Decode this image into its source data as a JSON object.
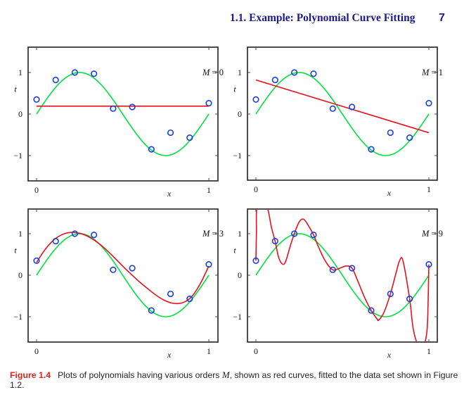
{
  "header": {
    "section_title": "1.1. Example: Polynomial Curve Fitting",
    "page_number": "7"
  },
  "caption": {
    "label": "Figure 1.4",
    "text_before": "Plots of polynomials having various orders ",
    "symbol": "M",
    "text_after": ", shown as red curves, fitted to the data set shown in Figure 1.2."
  },
  "colors": {
    "data_points": "#1a3ee0",
    "true_curve": "#00e040",
    "fit_curve": "#e8101e",
    "header_text": "#1a1a8c",
    "caption_label": "#e2231a"
  },
  "chart_data": [
    {
      "type": "line",
      "panel": "top-left",
      "title": "M = 0",
      "order": 0,
      "xlabel": "x",
      "ylabel": "t",
      "xlim": [
        0,
        1
      ],
      "ylim": [
        -1.6,
        1.6
      ],
      "xticks": [
        "0",
        "1"
      ],
      "yticks": [
        "-1",
        "0",
        "1"
      ],
      "data_x": [
        0,
        0.1111,
        0.2222,
        0.3333,
        0.4444,
        0.5556,
        0.6667,
        0.7778,
        0.8889,
        1.0
      ],
      "data_t": [
        0.35,
        0.82,
        1.0,
        0.97,
        0.13,
        0.17,
        -0.85,
        -0.45,
        -0.57,
        0.26
      ],
      "true_function": "sin(2*pi*x)",
      "fit_samples_x": [
        0,
        1
      ],
      "fit_samples_y": [
        0.19,
        0.19
      ]
    },
    {
      "type": "line",
      "panel": "top-right",
      "title": "M = 1",
      "order": 1,
      "xlabel": "x",
      "ylabel": "t",
      "xlim": [
        0,
        1
      ],
      "ylim": [
        -1.6,
        1.6
      ],
      "xticks": [
        "0",
        "1"
      ],
      "yticks": [
        "-1",
        "0",
        "1"
      ],
      "data_x": [
        0,
        0.1111,
        0.2222,
        0.3333,
        0.4444,
        0.5556,
        0.6667,
        0.7778,
        0.8889,
        1.0
      ],
      "data_t": [
        0.35,
        0.82,
        1.0,
        0.97,
        0.13,
        0.17,
        -0.85,
        -0.45,
        -0.57,
        0.26
      ],
      "true_function": "sin(2*pi*x)",
      "fit_samples_x": [
        0,
        1
      ],
      "fit_samples_y": [
        0.82,
        -0.45
      ]
    },
    {
      "type": "line",
      "panel": "bottom-left",
      "title": "M = 3",
      "order": 3,
      "xlabel": "x",
      "ylabel": "t",
      "xlim": [
        0,
        1
      ],
      "ylim": [
        -1.6,
        1.6
      ],
      "xticks": [
        "0",
        "1"
      ],
      "yticks": [
        "-1",
        "0",
        "1"
      ],
      "data_x": [
        0,
        0.1111,
        0.2222,
        0.3333,
        0.4444,
        0.5556,
        0.6667,
        0.7778,
        0.8889,
        1.0
      ],
      "data_t": [
        0.35,
        0.82,
        1.0,
        0.97,
        0.13,
        0.17,
        -0.85,
        -0.45,
        -0.57,
        0.26
      ],
      "true_function": "sin(2*pi*x)",
      "fit_samples_x": [
        0,
        0.05,
        0.1,
        0.15,
        0.2,
        0.25,
        0.3,
        0.35,
        0.4,
        0.45,
        0.5,
        0.55,
        0.6,
        0.65,
        0.7,
        0.75,
        0.8,
        0.85,
        0.9,
        0.95,
        1.0
      ],
      "fit_samples_y": [
        0.31,
        0.62,
        0.85,
        0.98,
        1.03,
        1.01,
        0.93,
        0.8,
        0.63,
        0.43,
        0.22,
        0.02,
        -0.17,
        -0.34,
        -0.5,
        -0.62,
        -0.68,
        -0.66,
        -0.52,
        -0.21,
        0.22
      ]
    },
    {
      "type": "line",
      "panel": "bottom-right",
      "title": "M = 9",
      "order": 9,
      "xlabel": "x",
      "ylabel": "t",
      "xlim": [
        0,
        1
      ],
      "ylim": [
        -1.6,
        1.6
      ],
      "xticks": [
        "0",
        "1"
      ],
      "yticks": [
        "-1",
        "0",
        "1"
      ],
      "data_x": [
        0,
        0.1111,
        0.2222,
        0.3333,
        0.4444,
        0.5556,
        0.6667,
        0.7778,
        0.8889,
        1.0
      ],
      "data_t": [
        0.35,
        0.82,
        1.0,
        0.97,
        0.13,
        0.17,
        -0.85,
        -0.45,
        -0.57,
        0.26
      ],
      "true_function": "sin(2*pi*x)",
      "fit_samples_x": [
        0,
        0.003,
        0.008,
        0.06,
        0.09,
        0.1111,
        0.13,
        0.15,
        0.17,
        0.2,
        0.2222,
        0.25,
        0.275,
        0.3,
        0.3333,
        0.36,
        0.4,
        0.4444,
        0.48,
        0.52,
        0.5556,
        0.59,
        0.63,
        0.6667,
        0.7,
        0.71,
        0.74,
        0.7778,
        0.81,
        0.83,
        0.85,
        0.8889,
        0.91,
        0.94,
        0.97,
        0.99,
        0.997,
        1.0
      ],
      "fit_samples_y": [
        0.35,
        1.0,
        1.7,
        1.7,
        1.15,
        0.82,
        0.45,
        0.28,
        0.31,
        0.72,
        1.0,
        1.28,
        1.35,
        1.22,
        0.97,
        0.7,
        0.35,
        0.13,
        0.16,
        0.22,
        0.17,
        -0.15,
        -0.55,
        -0.85,
        -1.05,
        -1.08,
        -0.9,
        -0.45,
        0.05,
        0.34,
        0.35,
        -0.57,
        -1.3,
        -1.7,
        -1.7,
        -1.3,
        -0.4,
        0.26
      ]
    }
  ]
}
